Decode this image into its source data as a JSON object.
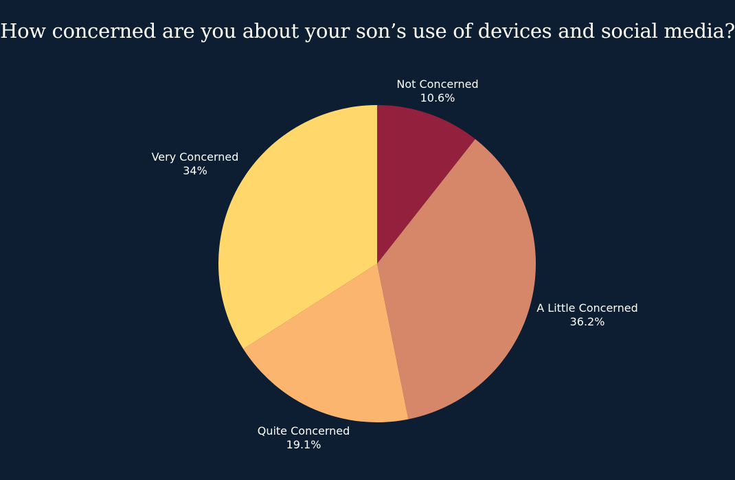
{
  "chart_data": {
    "type": "pie",
    "title": "How concerned are you about your son’s use of devices and social media?",
    "slices": [
      {
        "label": "Not Concerned",
        "value": 10.6,
        "value_label": "10.6%",
        "color": "#93213d"
      },
      {
        "label": "A Little Concerned",
        "value": 36.2,
        "value_label": "36.2%",
        "color": "#d6876a"
      },
      {
        "label": "Quite Concerned",
        "value": 19.1,
        "value_label": "19.1%",
        "color": "#fbb56f"
      },
      {
        "label": "Very Concerned",
        "value": 34,
        "value_label": "34%",
        "color": "#ffd76a"
      }
    ],
    "start_angle": "12 o'clock",
    "direction": "clockwise",
    "legend": "none"
  },
  "colors": {
    "background": "#0d1e33",
    "text": "#ffffff"
  }
}
